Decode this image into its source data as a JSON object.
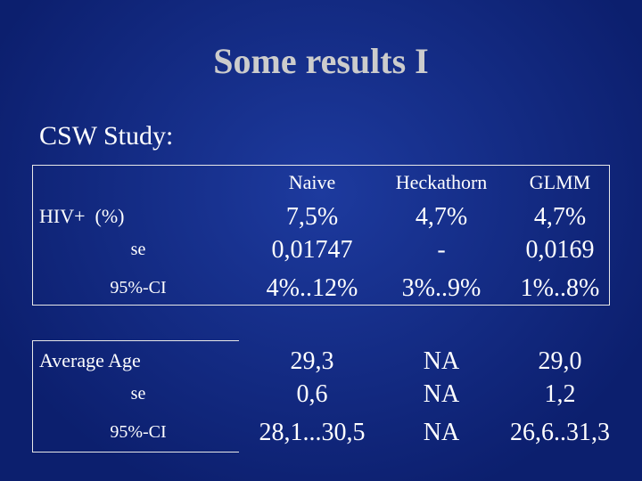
{
  "header": {
    "title": "Some results I",
    "subtitle": "CSW Study:"
  },
  "table": {
    "columns": [
      "Naive",
      "Heckathorn",
      "GLMM"
    ],
    "rows": [
      [
        "HIV+  (%)",
        "7,5%",
        "4,7%",
        "4,7%"
      ],
      [
        "se",
        "0,01747",
        "-",
        "0,0169"
      ],
      [
        "95%-CI",
        "4%..12%",
        "3%..9%",
        "1%..8%"
      ],
      [
        "Average Age",
        "29,3",
        "NA",
        "29,0"
      ],
      [
        "se",
        "0,6",
        "NA",
        "1,2"
      ],
      [
        "95%-CI",
        "28,1...30,5",
        "NA",
        "26,6..31,3"
      ]
    ]
  }
}
